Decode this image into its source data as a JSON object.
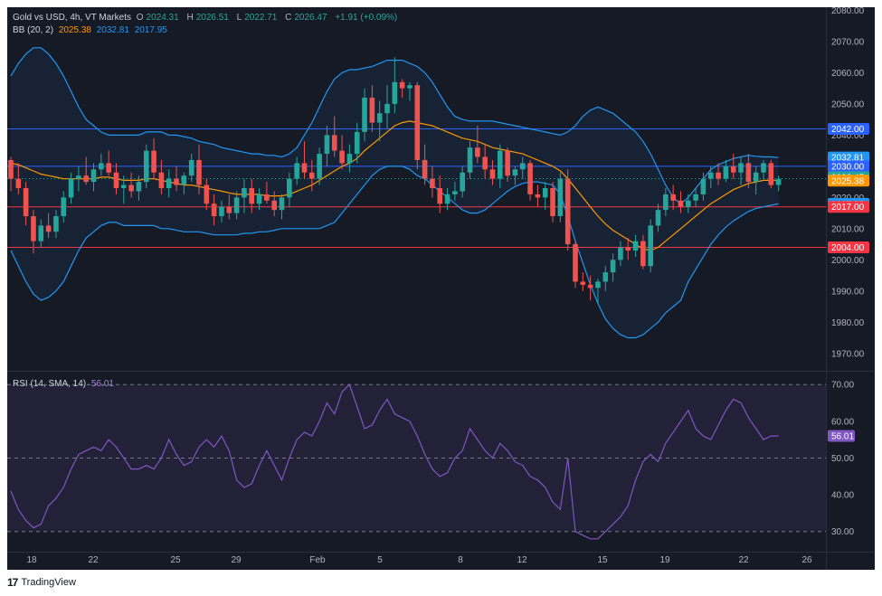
{
  "legend": {
    "symbol": "Gold vs USD, 4h, VT Markets",
    "o_label": "O",
    "o_value": "2024.31",
    "h_label": "H",
    "h_value": "2026.51",
    "l_label": "L",
    "l_value": "2022.71",
    "c_label": "C",
    "c_value": "2026.47",
    "change": "+1.91 (+0.09%)",
    "bb_label": "BB (20, 2)",
    "bb_basis": "2025.38",
    "bb_upper": "2032.81",
    "bb_lower": "2017.95",
    "rsi_label": "RSI (14, SMA, 14)",
    "rsi_value": "56.01"
  },
  "footer": {
    "brand": "TradingView"
  },
  "colors": {
    "background": "#161a25",
    "up": "#26a69a",
    "down": "#ef5350",
    "bb_basis": "#ff9800",
    "bb_band": "#2196f3",
    "rsi": "#7e57c2",
    "hline_blue": "#2962ff",
    "hline_red": "#f23645"
  },
  "chart_data": [
    {
      "type": "candlestick",
      "symbol": "XAUUSD",
      "timeframe": "4h",
      "x_ticks": [
        "18",
        "22",
        "25",
        "29",
        "Feb",
        "5",
        "8",
        "12",
        "15",
        "19",
        "22",
        "26"
      ],
      "y_ticks": [
        1970,
        1980,
        1990,
        2000,
        2010,
        2020,
        2030,
        2040,
        2050,
        2060,
        2070,
        2080
      ],
      "ylim": [
        1965,
        2081
      ],
      "horizontal_lines": [
        {
          "value": 2042,
          "color": "#2962ff"
        },
        {
          "value": 2030,
          "color": "#2962ff"
        },
        {
          "value": 2017,
          "color": "#f23645"
        },
        {
          "value": 2004,
          "color": "#f23645"
        }
      ],
      "price_labels": [
        {
          "value": 2042.0,
          "text": "2042.00",
          "color": "#2962ff"
        },
        {
          "value": 2032.81,
          "text": "2032.81",
          "color": "#2196f3"
        },
        {
          "value": 2030.0,
          "text": "2030.00",
          "color": "#2962ff"
        },
        {
          "value": 2026.47,
          "text": "2026.47",
          "color": "#26a69a"
        },
        {
          "value": 2025.38,
          "text": "2025.38",
          "color": "#ff9800"
        },
        {
          "value": 2017.95,
          "text": "2017.95",
          "color": "#2196f3"
        },
        {
          "value": 2017.0,
          "text": "2017.00",
          "color": "#f23645"
        },
        {
          "value": 2004.0,
          "text": "2004.00",
          "color": "#f23645"
        }
      ],
      "candles": [
        [
          2032,
          2033,
          2022,
          2026
        ],
        [
          2026,
          2031,
          2021,
          2023
        ],
        [
          2023,
          2025,
          2011,
          2014
        ],
        [
          2014,
          2016,
          2002,
          2006
        ],
        [
          2006,
          2013,
          2004,
          2011
        ],
        [
          2011,
          2015,
          2007,
          2009
        ],
        [
          2009,
          2016,
          2007,
          2014
        ],
        [
          2014,
          2022,
          2012,
          2020
        ],
        [
          2020,
          2028,
          2018,
          2026
        ],
        [
          2026,
          2030,
          2022,
          2027
        ],
        [
          2027,
          2033,
          2024,
          2025
        ],
        [
          2025,
          2031,
          2022,
          2029
        ],
        [
          2029,
          2034,
          2027,
          2031
        ],
        [
          2031,
          2035,
          2027,
          2028
        ],
        [
          2028,
          2031,
          2021,
          2023
        ],
        [
          2023,
          2027,
          2018,
          2024
        ],
        [
          2024,
          2028,
          2020,
          2022
        ],
        [
          2022,
          2027,
          2019,
          2025
        ],
        [
          2025,
          2037,
          2023,
          2035
        ],
        [
          2035,
          2039,
          2026,
          2028
        ],
        [
          2028,
          2032,
          2021,
          2023
        ],
        [
          2023,
          2029,
          2020,
          2026
        ],
        [
          2026,
          2030,
          2022,
          2024
        ],
        [
          2024,
          2028,
          2021,
          2027
        ],
        [
          2027,
          2034,
          2025,
          2032
        ],
        [
          2032,
          2037,
          2021,
          2024
        ],
        [
          2024,
          2026,
          2016,
          2018
        ],
        [
          2018,
          2021,
          2011,
          2014
        ],
        [
          2014,
          2019,
          2012,
          2017
        ],
        [
          2017,
          2021,
          2013,
          2015
        ],
        [
          2015,
          2022,
          2013,
          2020
        ],
        [
          2020,
          2026,
          2015,
          2023
        ],
        [
          2023,
          2026,
          2015,
          2018
        ],
        [
          2018,
          2023,
          2016,
          2021
        ],
        [
          2021,
          2025,
          2018,
          2019
        ],
        [
          2019,
          2022,
          2014,
          2016
        ],
        [
          2016,
          2021,
          2013,
          2020
        ],
        [
          2020,
          2028,
          2017,
          2026
        ],
        [
          2026,
          2033,
          2024,
          2031
        ],
        [
          2031,
          2038,
          2026,
          2028
        ],
        [
          2028,
          2032,
          2022,
          2026
        ],
        [
          2026,
          2036,
          2024,
          2034
        ],
        [
          2034,
          2043,
          2030,
          2040
        ],
        [
          2040,
          2046,
          2033,
          2035
        ],
        [
          2035,
          2040,
          2029,
          2031
        ],
        [
          2031,
          2037,
          2028,
          2034
        ],
        [
          2034,
          2044,
          2031,
          2041
        ],
        [
          2041,
          2055,
          2038,
          2052
        ],
        [
          2052,
          2056,
          2041,
          2044
        ],
        [
          2044,
          2051,
          2038,
          2047
        ],
        [
          2047,
          2056,
          2042,
          2050
        ],
        [
          2050,
          2065,
          2047,
          2057
        ],
        [
          2057,
          2058,
          2052,
          2055
        ],
        [
          2055,
          2057,
          2051,
          2056
        ],
        [
          2056,
          2057,
          2029,
          2032
        ],
        [
          2032,
          2037,
          2024,
          2026
        ],
        [
          2026,
          2030,
          2020,
          2023
        ],
        [
          2023,
          2027,
          2015,
          2018
        ],
        [
          2018,
          2023,
          2016,
          2021
        ],
        [
          2021,
          2025,
          2019,
          2022
        ],
        [
          2022,
          2030,
          2020,
          2028
        ],
        [
          2028,
          2038,
          2026,
          2036
        ],
        [
          2036,
          2043,
          2031,
          2033
        ],
        [
          2033,
          2037,
          2026,
          2029
        ],
        [
          2029,
          2032,
          2024,
          2026
        ],
        [
          2026,
          2037,
          2023,
          2035
        ],
        [
          2035,
          2036,
          2025,
          2027
        ],
        [
          2027,
          2030,
          2024,
          2029
        ],
        [
          2029,
          2033,
          2026,
          2031
        ],
        [
          2031,
          2032,
          2019,
          2021
        ],
        [
          2021,
          2024,
          2017,
          2020
        ],
        [
          2020,
          2025,
          2016,
          2023
        ],
        [
          2023,
          2025,
          2012,
          2014
        ],
        [
          2014,
          2028,
          2012,
          2026
        ],
        [
          2026,
          2029,
          2003,
          2005
        ],
        [
          2005,
          2006,
          1991,
          1993
        ],
        [
          1993,
          1996,
          1990,
          1992
        ],
        [
          1992,
          1995,
          1987,
          1991
        ],
        [
          1991,
          1994,
          1986,
          1993
        ],
        [
          1993,
          1998,
          1990,
          1996
        ],
        [
          1996,
          2002,
          1993,
          2000
        ],
        [
          2000,
          2006,
          1998,
          2004
        ],
        [
          2004,
          2007,
          2000,
          2003
        ],
        [
          2003,
          2008,
          2001,
          2006
        ],
        [
          2006,
          2008,
          1997,
          1998
        ],
        [
          1998,
          2013,
          1996,
          2011
        ],
        [
          2011,
          2018,
          2009,
          2016
        ],
        [
          2016,
          2023,
          2014,
          2021
        ],
        [
          2021,
          2024,
          2016,
          2019
        ],
        [
          2019,
          2022,
          2015,
          2017
        ],
        [
          2017,
          2021,
          2015,
          2019
        ],
        [
          2019,
          2023,
          2017,
          2021
        ],
        [
          2021,
          2028,
          2019,
          2026
        ],
        [
          2026,
          2030,
          2023,
          2028
        ],
        [
          2028,
          2031,
          2024,
          2026
        ],
        [
          2026,
          2032,
          2025,
          2030
        ],
        [
          2030,
          2034,
          2026,
          2028
        ],
        [
          2028,
          2033,
          2024,
          2031
        ],
        [
          2031,
          2034,
          2023,
          2025
        ],
        [
          2025,
          2030,
          2021,
          2028
        ],
        [
          2028,
          2032,
          2026,
          2031
        ],
        [
          2031,
          2032,
          2023,
          2024
        ],
        [
          2024,
          2027,
          2022,
          2026
        ]
      ],
      "bb_basis": [
        2031,
        2030.5,
        2029.5,
        2028.5,
        2027.5,
        2027,
        2026.5,
        2026,
        2026,
        2026,
        2026,
        2026,
        2026.5,
        2026.5,
        2026,
        2025.5,
        2025.5,
        2025.5,
        2026,
        2026,
        2025.5,
        2025,
        2024.5,
        2024,
        2024,
        2023.5,
        2023,
        2022.5,
        2022,
        2021.5,
        2021,
        2021,
        2021,
        2021,
        2020.5,
        2020.5,
        2020.5,
        2021,
        2022,
        2023,
        2024,
        2025.5,
        2027,
        2028.5,
        2030,
        2031,
        2032.5,
        2035,
        2037,
        2039,
        2041,
        2043,
        2044,
        2044.5,
        2044,
        2043.5,
        2043,
        2042,
        2041,
        2040,
        2039,
        2038.5,
        2038,
        2037,
        2036,
        2035.5,
        2035,
        2034.5,
        2034,
        2033,
        2032,
        2031,
        2030,
        2028.5,
        2026,
        2023,
        2020,
        2017,
        2014,
        2011.5,
        2009.5,
        2008,
        2006.5,
        2005,
        2003.5,
        2003,
        2004,
        2006,
        2008,
        2010,
        2012,
        2014,
        2016,
        2018,
        2019.5,
        2021,
        2022.5,
        2023.5,
        2024.5,
        2025,
        2025.5,
        2025.5,
        2025.4
      ],
      "bb_upper": [
        2059,
        2063,
        2066,
        2068,
        2068,
        2066,
        2063,
        2059,
        2054,
        2049,
        2045,
        2043,
        2041,
        2040,
        2040,
        2040,
        2040,
        2040,
        2041,
        2041,
        2041,
        2040,
        2040,
        2039.5,
        2039,
        2038,
        2037.5,
        2037,
        2036,
        2035.5,
        2035,
        2034.5,
        2034,
        2034,
        2033.5,
        2033.5,
        2033,
        2034,
        2036,
        2040,
        2044,
        2049,
        2054,
        2058,
        2060,
        2061,
        2061,
        2061.5,
        2062,
        2063,
        2064,
        2064,
        2064,
        2063,
        2062,
        2060,
        2057,
        2053,
        2049,
        2046,
        2045,
        2044.5,
        2044.5,
        2044.5,
        2044.5,
        2044,
        2043.5,
        2043,
        2042.5,
        2042,
        2041.5,
        2041,
        2040.5,
        2040,
        2041,
        2043,
        2046,
        2048,
        2049,
        2048,
        2047,
        2045,
        2043,
        2041,
        2038,
        2034,
        2029,
        2024,
        2020,
        2018,
        2020,
        2023,
        2026,
        2029,
        2030.5,
        2031.5,
        2032.5,
        2033,
        2033.5,
        2033.2,
        2033,
        2033,
        2032.8
      ],
      "bb_lower": [
        2003,
        1998,
        1993,
        1989,
        1987,
        1988,
        1990,
        1993,
        1998,
        2003,
        2007,
        2009,
        2011,
        2012,
        2012,
        2011,
        2011,
        2011,
        2011,
        2011,
        2010,
        2010,
        2009.5,
        2009,
        2009,
        2009,
        2008.5,
        2008,
        2008,
        2008,
        2008,
        2008.5,
        2008.5,
        2009,
        2009,
        2009.5,
        2010,
        2010,
        2010,
        2010,
        2010,
        2010,
        2011,
        2012,
        2015,
        2018,
        2021,
        2024,
        2027,
        2029,
        2030,
        2030,
        2030,
        2029,
        2027,
        2026,
        2024,
        2022,
        2020,
        2018,
        2016,
        2015,
        2015,
        2016,
        2018,
        2020,
        2022,
        2023.5,
        2024.5,
        2025,
        2025,
        2024.5,
        2024,
        2021,
        2014,
        2006,
        1999,
        1992,
        1986,
        1981,
        1978,
        1976,
        1975,
        1975,
        1976,
        1978,
        1980,
        1983,
        1985,
        1987,
        1993,
        1997,
        2001,
        2005,
        2008,
        2010.5,
        2012.5,
        2014,
        2015.5,
        2016.5,
        2017,
        2017.5,
        2017.95
      ]
    },
    {
      "type": "line",
      "name": "RSI (14, SMA, 14)",
      "y_ticks": [
        30,
        40,
        50,
        60,
        70
      ],
      "ylim": [
        25,
        73
      ],
      "dashed_levels": [
        70,
        50,
        30
      ],
      "current_value": 56.01,
      "values": [
        41,
        36,
        33,
        31,
        32,
        37,
        39,
        42,
        47,
        51,
        52,
        53,
        52,
        55,
        53,
        50,
        47,
        47,
        48,
        47,
        50,
        55,
        51,
        48,
        49,
        53,
        55,
        53,
        56,
        52,
        44,
        42,
        43,
        48,
        52,
        48,
        44,
        50,
        55,
        57,
        56,
        60,
        65,
        62,
        68,
        70,
        64,
        58,
        59,
        63,
        66,
        62,
        61,
        60,
        56,
        51,
        47,
        45,
        46,
        50,
        52,
        58,
        55,
        52,
        50,
        54,
        52,
        49,
        48,
        45,
        44,
        42,
        38,
        36,
        50,
        30,
        29,
        28,
        28,
        30,
        32,
        34,
        37,
        44,
        49,
        51,
        49,
        54,
        57,
        60,
        63,
        58,
        56,
        55,
        59,
        63,
        66,
        65,
        61,
        58,
        55,
        56,
        56.01
      ]
    }
  ]
}
